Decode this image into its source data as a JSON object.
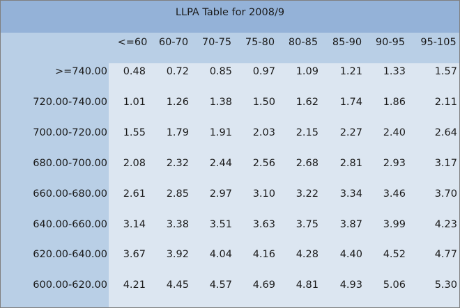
{
  "chart_data": {
    "type": "table",
    "title": "LLPA Table for 2008/9",
    "columns": [
      "<=60",
      "60-70",
      "70-75",
      "75-80",
      "80-85",
      "85-90",
      "90-95",
      "95-105"
    ],
    "rows": [
      {
        "label": ">=740.00",
        "values": [
          "0.48",
          "0.72",
          "0.85",
          "0.97",
          "1.09",
          "1.21",
          "1.33",
          "1.57"
        ]
      },
      {
        "label": "720.00-740.00",
        "values": [
          "1.01",
          "1.26",
          "1.38",
          "1.50",
          "1.62",
          "1.74",
          "1.86",
          "2.11"
        ]
      },
      {
        "label": "700.00-720.00",
        "values": [
          "1.55",
          "1.79",
          "1.91",
          "2.03",
          "2.15",
          "2.27",
          "2.40",
          "2.64"
        ]
      },
      {
        "label": "680.00-700.00",
        "values": [
          "2.08",
          "2.32",
          "2.44",
          "2.56",
          "2.68",
          "2.81",
          "2.93",
          "3.17"
        ]
      },
      {
        "label": "660.00-680.00",
        "values": [
          "2.61",
          "2.85",
          "2.97",
          "3.10",
          "3.22",
          "3.34",
          "3.46",
          "3.70"
        ]
      },
      {
        "label": "640.00-660.00",
        "values": [
          "3.14",
          "3.38",
          "3.51",
          "3.63",
          "3.75",
          "3.87",
          "3.99",
          "4.23"
        ]
      },
      {
        "label": "620.00-640.00",
        "values": [
          "3.67",
          "3.92",
          "4.04",
          "4.16",
          "4.28",
          "4.40",
          "4.52",
          "4.77"
        ]
      },
      {
        "label": "600.00-620.00",
        "values": [
          "4.21",
          "4.45",
          "4.57",
          "4.69",
          "4.81",
          "4.93",
          "5.06",
          "5.30"
        ]
      }
    ]
  },
  "colors": {
    "title_band": "#94b2d8",
    "header_band": "#b9cfe6",
    "body_fill": "#dce6f1",
    "frame_border": "#7f7f7f",
    "text": "#1a1a1a"
  }
}
